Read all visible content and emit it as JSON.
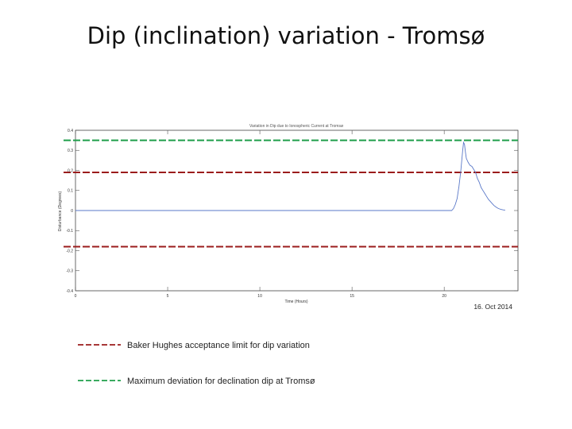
{
  "slide": {
    "title": "Dip (inclination) variation - Tromsø"
  },
  "chart_data": {
    "type": "line",
    "title": "Variation in Dip due to Ionospheric Current at Tromsø",
    "xlabel": "Time (Hours)",
    "ylabel": "Disturbance (Degrees)",
    "xlim": [
      0,
      24
    ],
    "ylim": [
      -0.4,
      0.4
    ],
    "x_ticks": [
      0,
      5,
      10,
      15,
      20
    ],
    "x_tick_labels": [
      "0",
      "5",
      "10",
      "15",
      "20"
    ],
    "y_ticks": [
      0.4,
      0.3,
      0.2,
      0.1,
      0,
      -0.1,
      -0.2,
      -0.3,
      -0.4
    ],
    "y_tick_labels": [
      "0.4",
      "0.3",
      "0.2",
      "0.1",
      "0",
      "-0.1",
      "-0.2",
      "-0.3",
      "-0.4"
    ],
    "grid": false,
    "series": [
      {
        "color": "#5a78c8",
        "x": [
          0,
          20.4,
          20.5,
          20.6,
          20.7,
          20.8,
          20.9,
          21.0,
          21.05,
          21.1,
          21.15,
          21.2,
          21.3,
          21.4,
          21.5,
          21.6,
          21.7,
          21.8,
          21.9,
          22.0,
          22.1,
          22.2,
          22.3,
          22.4,
          22.5,
          22.6,
          22.7,
          22.8,
          22.9,
          23.0,
          23.1,
          23.2,
          23.3
        ],
        "y": [
          0,
          0,
          0.01,
          0.03,
          0.06,
          0.12,
          0.2,
          0.3,
          0.34,
          0.33,
          0.29,
          0.26,
          0.24,
          0.225,
          0.22,
          0.205,
          0.19,
          0.16,
          0.14,
          0.115,
          0.1,
          0.085,
          0.07,
          0.055,
          0.045,
          0.035,
          0.025,
          0.018,
          0.012,
          0.008,
          0.005,
          0.003,
          0.002
        ]
      }
    ],
    "reference_lines": [
      {
        "y": 0.35,
        "color": "#1f9e4a",
        "style": "dashed"
      },
      {
        "y": 0.19,
        "color": "#9b1c1c",
        "style": "dashed"
      },
      {
        "y": -0.18,
        "color": "#9b1c1c",
        "style": "dashed"
      }
    ],
    "annotations": [
      {
        "text": "16. Oct 2014"
      }
    ],
    "legend": {
      "placement": "bottom-left",
      "items": [
        {
          "label": "Baker Hughes acceptance limit for dip variation",
          "color": "#9b1c1c",
          "style": "dashed"
        },
        {
          "label": "Maximum deviation for declination dip at Tromsø",
          "color": "#1f9e4a",
          "style": "dashed"
        }
      ]
    }
  }
}
